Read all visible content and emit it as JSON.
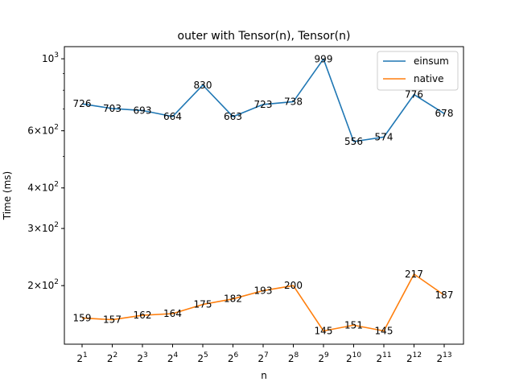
{
  "chart_data": {
    "type": "line",
    "title": "outer with Tensor(n), Tensor(n)",
    "xlabel": "n",
    "ylabel": "Time (ms)",
    "yscale": "log",
    "ylim": [
      132,
      1090
    ],
    "categories": [
      {
        "base": "2",
        "exp": "1"
      },
      {
        "base": "2",
        "exp": "2"
      },
      {
        "base": "2",
        "exp": "3"
      },
      {
        "base": "2",
        "exp": "4"
      },
      {
        "base": "2",
        "exp": "5"
      },
      {
        "base": "2",
        "exp": "6"
      },
      {
        "base": "2",
        "exp": "7"
      },
      {
        "base": "2",
        "exp": "8"
      },
      {
        "base": "2",
        "exp": "9"
      },
      {
        "base": "2",
        "exp": "10"
      },
      {
        "base": "2",
        "exp": "11"
      },
      {
        "base": "2",
        "exp": "12"
      },
      {
        "base": "2",
        "exp": "13"
      }
    ],
    "yticks": [
      {
        "value": 200,
        "mant": "2",
        "base": "10",
        "exp": "2"
      },
      {
        "value": 300,
        "mant": "3",
        "base": "10",
        "exp": "2"
      },
      {
        "value": 400,
        "mant": "4",
        "base": "10",
        "exp": "2"
      },
      {
        "value": 600,
        "mant": "6",
        "base": "10",
        "exp": "2"
      },
      {
        "value": 1000,
        "mant": "",
        "base": "10",
        "exp": "3"
      }
    ],
    "series": [
      {
        "name": "einsum",
        "color": "#1f77b4",
        "values": [
          726,
          703,
          693,
          664,
          830,
          663,
          723,
          738,
          999,
          556,
          574,
          776,
          678
        ]
      },
      {
        "name": "native",
        "color": "#ff7f0e",
        "values": [
          159,
          157,
          162,
          164,
          175,
          182,
          193,
          200,
          145,
          151,
          145,
          217,
          187
        ]
      }
    ],
    "legend_position": "top-right",
    "grid": false
  }
}
